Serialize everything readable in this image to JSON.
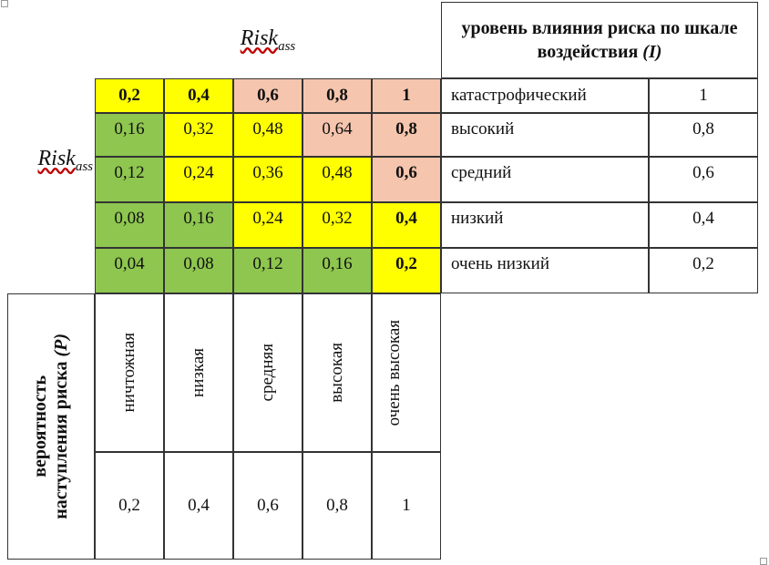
{
  "header": {
    "risk_label": "Risk",
    "risk_sub": "ass",
    "scale_title": "уровень влияния риска по шкале воздействия",
    "scale_title_var": "(I)"
  },
  "matrix": {
    "top_row": [
      "0,2",
      "0,4",
      "0,6",
      "0,8",
      "1"
    ],
    "rows": [
      [
        "0,16",
        "0,32",
        "0,48",
        "0,64",
        "0,8"
      ],
      [
        "0,12",
        "0,24",
        "0,36",
        "0,48",
        "0,6"
      ],
      [
        "0,08",
        "0,16",
        "0,24",
        "0,32",
        "0,4"
      ],
      [
        "0,04",
        "0,08",
        "0,12",
        "0,16",
        "0,2"
      ]
    ]
  },
  "impact": {
    "levels": [
      {
        "label": "катастрофический",
        "value": "1"
      },
      {
        "label": "высокий",
        "value": "0,8"
      },
      {
        "label": "средний",
        "value": "0,6"
      },
      {
        "label": "низкий",
        "value": "0,4"
      },
      {
        "label": "очень низкий",
        "value": "0,2"
      }
    ]
  },
  "probability": {
    "title_line1": "вероятность",
    "title_line2": "наступления риска",
    "title_var": "(P)",
    "categories": [
      "ничтожная",
      "низкая",
      "средняя",
      "высокая",
      "очень высокая"
    ],
    "values": [
      "0,2",
      "0,4",
      "0,6",
      "0,8",
      "1"
    ]
  },
  "colors": {
    "green": "#8ec64f",
    "yellow": "#ffff00",
    "salmon": "#f6c5ae"
  }
}
